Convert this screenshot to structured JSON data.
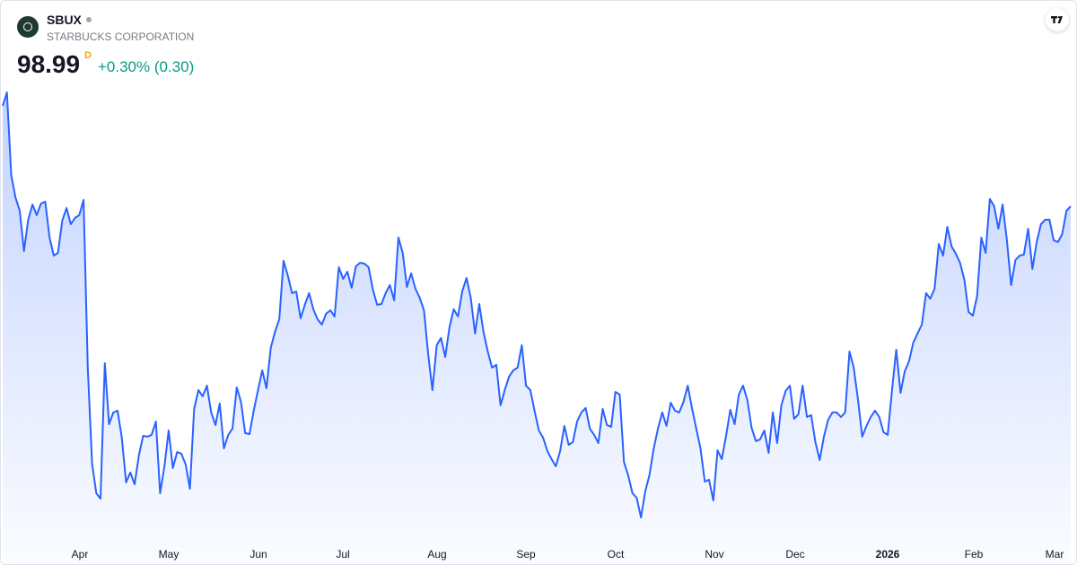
{
  "header": {
    "symbol": "SBUX",
    "company": "STARBUCKS CORPORATION",
    "price": "98.99",
    "interval": "D",
    "change": "+0.30% (0.30)"
  },
  "chart_data": {
    "type": "area",
    "color": "#2962ff",
    "month_labels": [
      "Apr",
      "May",
      "Jun",
      "Jul",
      "Aug",
      "Sep",
      "Oct",
      "Nov",
      "Dec",
      "2026",
      "Feb",
      "Mar"
    ],
    "values": [
      106.41,
      107.4,
      101.31,
      99.65,
      98.66,
      95.67,
      97.99,
      99.12,
      98.33,
      99.19,
      99.32,
      96.67,
      95.34,
      95.54,
      97.93,
      98.86,
      97.66,
      98.13,
      98.33,
      99.45,
      87.06,
      79.97,
      77.78,
      77.38,
      87.39,
      82.88,
      83.75,
      83.88,
      81.89,
      78.58,
      79.31,
      78.44,
      80.56,
      82.02,
      81.96,
      82.09,
      83.08,
      77.78,
      79.77,
      82.42,
      79.64,
      80.83,
      80.7,
      79.9,
      78.11,
      84.01,
      85.4,
      84.94,
      85.73,
      83.75,
      82.82,
      84.41,
      81.09,
      82.09,
      82.55,
      85.6,
      84.54,
      82.22,
      82.15,
      83.88,
      85.4,
      86.86,
      85.54,
      88.52,
      89.71,
      90.64,
      94.95,
      93.89,
      92.56,
      92.69,
      90.7,
      91.7,
      92.56,
      91.37,
      90.64,
      90.24,
      91.04,
      91.3,
      90.84,
      94.48,
      93.62,
      94.15,
      92.96,
      94.55,
      94.81,
      94.75,
      94.48,
      92.82,
      91.7,
      91.76,
      92.56,
      93.16,
      92.03,
      96.67,
      95.54,
      93.02,
      94.02,
      92.89,
      92.23,
      91.3,
      88.05,
      85.4,
      88.72,
      89.25,
      87.85,
      90.04,
      91.37,
      90.84,
      92.69,
      93.69,
      92.23,
      89.58,
      91.76,
      89.71,
      88.25,
      87.06,
      87.26,
      84.28,
      85.4,
      86.4,
      86.86,
      87.06,
      88.72,
      85.73,
      85.4,
      83.88,
      82.42,
      81.89,
      80.9,
      80.3,
      79.77,
      80.9,
      82.75,
      81.36,
      81.56,
      83.08,
      83.75,
      84.08,
      82.55,
      82.09,
      81.49,
      84.01,
      82.82,
      82.69,
      85.27,
      85.07,
      80.1,
      79.11,
      77.78,
      77.45,
      75.99,
      77.91,
      79.11,
      81.09,
      82.55,
      83.75,
      82.75,
      84.47,
      83.88,
      83.75,
      84.54,
      85.73,
      84.08,
      82.55,
      81.09,
      78.64,
      78.78,
      77.25,
      80.96,
      80.3,
      82.02,
      83.94,
      82.88,
      85.07,
      85.73,
      84.67,
      82.62,
      81.63,
      81.76,
      82.42,
      80.76,
      83.75,
      81.49,
      84.28,
      85.34,
      85.73,
      83.28,
      83.61,
      85.73,
      83.41,
      83.55,
      81.56,
      80.23,
      81.96,
      83.22,
      83.75,
      83.75,
      83.41,
      83.75,
      88.25,
      87.06,
      84.74,
      81.96,
      82.75,
      83.41,
      83.88,
      83.41,
      82.29,
      82.09,
      85.4,
      88.38,
      85.2,
      86.79,
      87.52,
      88.91,
      89.58,
      90.24,
      92.56,
      92.16,
      92.89,
      96.2,
      95.34,
      97.46,
      96.01,
      95.48,
      94.81,
      93.55,
      91.17,
      90.9,
      92.36,
      96.67,
      95.54,
      99.52,
      98.99,
      97.33,
      99.12,
      96.47,
      93.16,
      95.01,
      95.34,
      95.41,
      97.33,
      94.35,
      96.34,
      97.66,
      97.99,
      97.99,
      96.47,
      96.34,
      96.93,
      98.66,
      98.99
    ]
  }
}
